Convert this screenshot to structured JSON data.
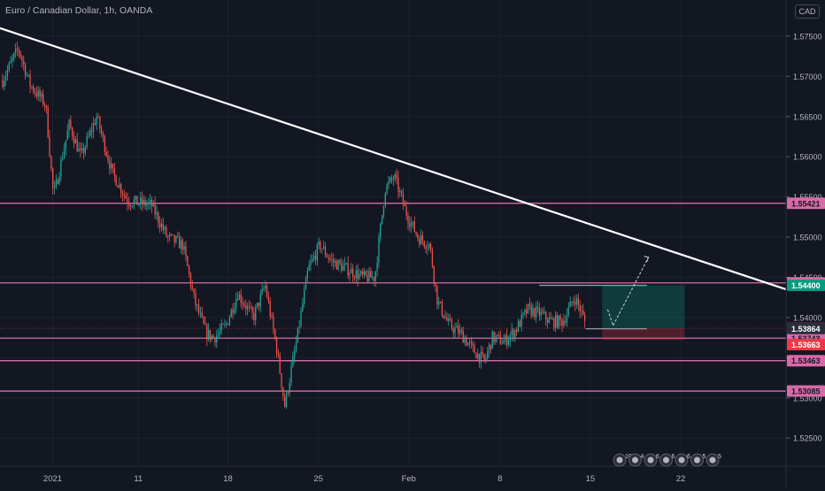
{
  "header": {
    "title": "Euro / Canadian Dollar, 1h, OANDA",
    "currency": "CAD"
  },
  "chart_data": {
    "type": "candlestick",
    "symbol": "Euro / Canadian Dollar",
    "interval": "1h",
    "source": "OANDA",
    "ylim": [
      1.5215,
      1.5795
    ],
    "price_axis_ticks": [
      "1.57500",
      "1.57000",
      "1.56500",
      "1.56000",
      "1.55500",
      "1.55000",
      "1.54500",
      "1.54000",
      "1.53500",
      "1.53000",
      "1.52500"
    ],
    "time_axis_ticks": [
      {
        "label": "2021",
        "pos": 0.067
      },
      {
        "label": "11",
        "pos": 0.176
      },
      {
        "label": "18",
        "pos": 0.29
      },
      {
        "label": "25",
        "pos": 0.405
      },
      {
        "label": "Feb",
        "pos": 0.52
      },
      {
        "label": "8",
        "pos": 0.636
      },
      {
        "label": "15",
        "pos": 0.751
      },
      {
        "label": "22",
        "pos": 0.866
      }
    ],
    "horizontal_levels": [
      {
        "label": "1.55421",
        "value": 1.55421
      },
      {
        "label": "1.54431",
        "value": 1.54431
      },
      {
        "label": "1.53743",
        "value": 1.53743
      },
      {
        "label": "1.53463",
        "value": 1.53463
      },
      {
        "label": "1.53085",
        "value": 1.53085
      }
    ],
    "price_markers": [
      {
        "label": "1.54400",
        "value": 1.544,
        "color": "#089981"
      },
      {
        "label": "1.53866",
        "value": 1.53866,
        "color": "#f23645"
      },
      {
        "label": "1.53864",
        "value": 1.53864,
        "color": "#2a2e39"
      },
      {
        "label": "1.53663",
        "value": 1.53663,
        "color": "#f23645"
      }
    ],
    "current_price": 1.53866,
    "trendline": {
      "start": [
        0.0,
        1.576
      ],
      "end": [
        1.0,
        1.5435
      ]
    },
    "position_tool": {
      "entry": 1.53864,
      "target": 1.544,
      "stop": 1.5372,
      "x0": 0.766,
      "x1": 0.871
    },
    "key_points": [
      [
        0.0,
        1.5695
      ],
      [
        0.02,
        1.5735
      ],
      [
        0.035,
        1.569
      ],
      [
        0.055,
        1.5665
      ],
      [
        0.065,
        1.555
      ],
      [
        0.085,
        1.564
      ],
      [
        0.1,
        1.56
      ],
      [
        0.12,
        1.565
      ],
      [
        0.14,
        1.558
      ],
      [
        0.16,
        1.5545
      ],
      [
        0.19,
        1.554
      ],
      [
        0.21,
        1.55
      ],
      [
        0.23,
        1.549
      ],
      [
        0.245,
        1.542
      ],
      [
        0.26,
        1.538
      ],
      [
        0.27,
        1.5375
      ],
      [
        0.285,
        1.539
      ],
      [
        0.3,
        1.543
      ],
      [
        0.32,
        1.54
      ],
      [
        0.335,
        1.544
      ],
      [
        0.35,
        1.536
      ],
      [
        0.36,
        1.529
      ],
      [
        0.375,
        1.537
      ],
      [
        0.39,
        1.546
      ],
      [
        0.405,
        1.549
      ],
      [
        0.42,
        1.547
      ],
      [
        0.44,
        1.546
      ],
      [
        0.46,
        1.545
      ],
      [
        0.475,
        1.545
      ],
      [
        0.488,
        1.556
      ],
      [
        0.5,
        1.5575
      ],
      [
        0.515,
        1.553
      ],
      [
        0.53,
        1.55
      ],
      [
        0.545,
        1.549
      ],
      [
        0.555,
        1.542
      ],
      [
        0.57,
        1.539
      ],
      [
        0.585,
        1.538
      ],
      [
        0.6,
        1.536
      ],
      [
        0.615,
        1.5345
      ],
      [
        0.625,
        1.5375
      ],
      [
        0.64,
        1.537
      ],
      [
        0.655,
        1.5385
      ],
      [
        0.67,
        1.541
      ],
      [
        0.685,
        1.5405
      ],
      [
        0.7,
        1.5395
      ],
      [
        0.715,
        1.5395
      ],
      [
        0.73,
        1.5425
      ],
      [
        0.737,
        1.541
      ],
      [
        0.745,
        1.539
      ]
    ]
  },
  "event_icons": [
    "10",
    "4",
    "6",
    "6",
    "6",
    "5",
    "5"
  ]
}
